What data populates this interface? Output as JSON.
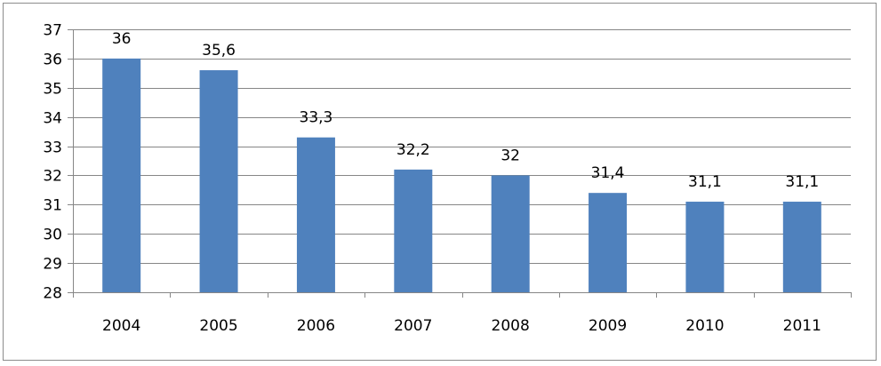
{
  "chart_data": {
    "type": "bar",
    "categories": [
      "2004",
      "2005",
      "2006",
      "2007",
      "2008",
      "2009",
      "2010",
      "2011"
    ],
    "values": [
      36,
      35.6,
      33.3,
      32.2,
      32,
      31.4,
      31.1,
      31.1
    ],
    "data_labels": [
      "36",
      "35,6",
      "33,3",
      "32,2",
      "32",
      "31,4",
      "31,1",
      "31,1"
    ],
    "title": "",
    "xlabel": "",
    "ylabel": "",
    "ylim": [
      28,
      37
    ],
    "yticks": [
      "28",
      "29",
      "30",
      "31",
      "32",
      "33",
      "34",
      "35",
      "36",
      "37"
    ],
    "grid": true,
    "legend": "none",
    "bar_color": "#4f81bd",
    "grid_color": "#868686"
  }
}
